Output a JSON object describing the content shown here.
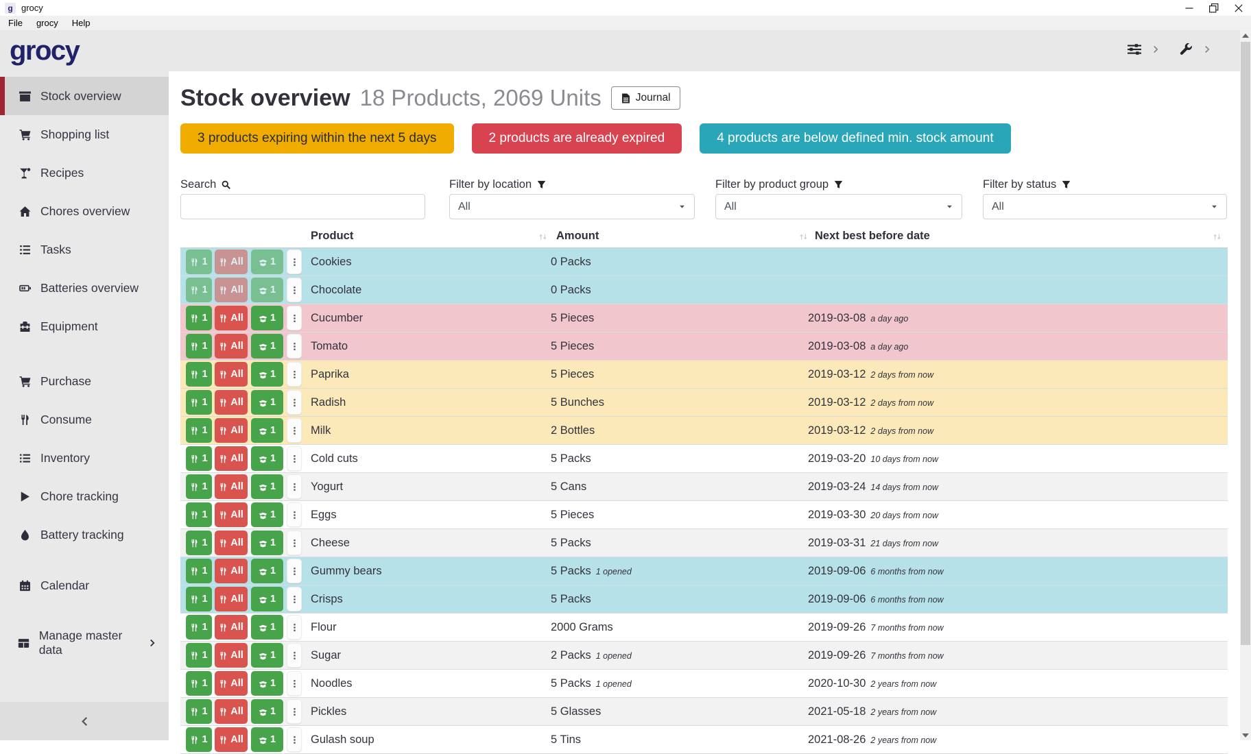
{
  "window": {
    "favicon_letter": "g",
    "title": "grocy",
    "menu": [
      "File",
      "grocy",
      "Help"
    ]
  },
  "header": {
    "logo": "grocy"
  },
  "sidebar": {
    "items": [
      {
        "label": "Stock overview",
        "icon": "box",
        "active": true
      },
      {
        "label": "Shopping list",
        "icon": "cart"
      },
      {
        "label": "Recipes",
        "icon": "cocktail"
      },
      {
        "label": "Chores overview",
        "icon": "home"
      },
      {
        "label": "Tasks",
        "icon": "tasks"
      },
      {
        "label": "Batteries overview",
        "icon": "battery"
      },
      {
        "label": "Equipment",
        "icon": "toolbox"
      },
      {
        "label": "Purchase",
        "icon": "cart",
        "gap": 24
      },
      {
        "label": "Consume",
        "icon": "utensils"
      },
      {
        "label": "Inventory",
        "icon": "list"
      },
      {
        "label": "Chore tracking",
        "icon": "play"
      },
      {
        "label": "Battery tracking",
        "icon": "tint"
      },
      {
        "label": "Calendar",
        "icon": "calendar",
        "gap": 18
      },
      {
        "label": "Manage master data",
        "icon": "table",
        "gap": 28,
        "chevron": true
      }
    ]
  },
  "page": {
    "title": "Stock overview",
    "subtitle": "18 Products, 2069 Units",
    "journal_label": "Journal",
    "alerts": [
      {
        "type": "warning",
        "text": "3 products expiring within the next 5 days"
      },
      {
        "type": "danger",
        "text": "2 products are already expired"
      },
      {
        "type": "info",
        "text": "4 products are below defined min. stock amount"
      }
    ],
    "filters": {
      "search_label": "Search",
      "search_value": "",
      "location_label": "Filter by location",
      "location_value": "All",
      "group_label": "Filter by product group",
      "group_value": "All",
      "status_label": "Filter by status",
      "status_value": "All"
    },
    "table": {
      "columns": [
        "Product",
        "Amount",
        "Next best before date"
      ],
      "row_buttons": {
        "consume_one": "1",
        "consume_all": "All",
        "open_one": "1"
      },
      "rows": [
        {
          "product": "Cookies",
          "amount": "0 Packs",
          "date": "",
          "highlight": "info",
          "muted": true
        },
        {
          "product": "Chocolate",
          "amount": "0 Packs",
          "date": "",
          "highlight": "info",
          "muted": true
        },
        {
          "product": "Cucumber",
          "amount": "5 Pieces",
          "date": "2019-03-08",
          "date_note": "a day ago",
          "highlight": "danger"
        },
        {
          "product": "Tomato",
          "amount": "5 Pieces",
          "date": "2019-03-08",
          "date_note": "a day ago",
          "highlight": "danger"
        },
        {
          "product": "Paprika",
          "amount": "5 Pieces",
          "date": "2019-03-12",
          "date_note": "2 days from now",
          "highlight": "warning"
        },
        {
          "product": "Radish",
          "amount": "5 Bunches",
          "date": "2019-03-12",
          "date_note": "2 days from now",
          "highlight": "warning"
        },
        {
          "product": "Milk",
          "amount": "2 Bottles",
          "date": "2019-03-12",
          "date_note": "2 days from now",
          "highlight": "warning"
        },
        {
          "product": "Cold cuts",
          "amount": "5 Packs",
          "date": "2019-03-20",
          "date_note": "10 days from now",
          "highlight": ""
        },
        {
          "product": "Yogurt",
          "amount": "5 Cans",
          "date": "2019-03-24",
          "date_note": "14 days from now",
          "highlight": "stripe"
        },
        {
          "product": "Eggs",
          "amount": "5 Pieces",
          "date": "2019-03-30",
          "date_note": "20 days from now",
          "highlight": ""
        },
        {
          "product": "Cheese",
          "amount": "5 Packs",
          "date": "2019-03-31",
          "date_note": "21 days from now",
          "highlight": "stripe"
        },
        {
          "product": "Gummy bears",
          "amount": "5 Packs",
          "amount_note": "1 opened",
          "date": "2019-09-06",
          "date_note": "6 months from now",
          "highlight": "info"
        },
        {
          "product": "Crisps",
          "amount": "5 Packs",
          "date": "2019-09-06",
          "date_note": "6 months from now",
          "highlight": "info"
        },
        {
          "product": "Flour",
          "amount": "2000 Grams",
          "date": "2019-09-26",
          "date_note": "7 months from now",
          "highlight": ""
        },
        {
          "product": "Sugar",
          "amount": "2 Packs",
          "amount_note": "1 opened",
          "date": "2019-09-26",
          "date_note": "7 months from now",
          "highlight": "stripe"
        },
        {
          "product": "Noodles",
          "amount": "5 Packs",
          "amount_note": "1 opened",
          "date": "2020-10-30",
          "date_note": "2 years from now",
          "highlight": ""
        },
        {
          "product": "Pickles",
          "amount": "5 Glasses",
          "date": "2021-05-18",
          "date_note": "2 years from now",
          "highlight": "stripe"
        },
        {
          "product": "Gulash soup",
          "amount": "5 Tins",
          "date": "2021-08-26",
          "date_note": "2 years from now",
          "highlight": ""
        }
      ]
    }
  },
  "colors": {
    "accent_red": "#9c2433",
    "warning": "#f0ad00",
    "danger": "#d94350",
    "info": "#29a7b8",
    "row_info": "#b7e1e8",
    "row_danger": "#f2c6cd",
    "row_warning": "#fbe9ba",
    "btn_green": "#47a44b",
    "btn_red": "#d9534f",
    "logo": "#22226a"
  }
}
